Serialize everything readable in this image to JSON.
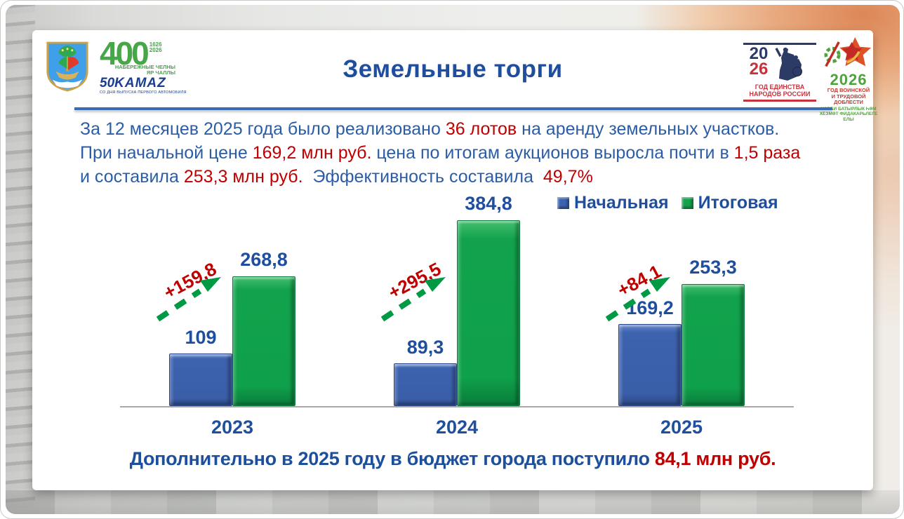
{
  "slide_title": "Земельные торги",
  "colors": {
    "accent_blue": "#1F4E9F",
    "text_blue": "#2B5DA7",
    "accent_red": "#C00000",
    "footer_blue": "#1C4F9C",
    "divider_blue": "#3A6BB5",
    "axis_gray": "#A8A8A8"
  },
  "logos": {
    "coat_of_arms": {
      "alt": "Герб города Набережные Челны"
    },
    "anniversary": {
      "number": "400",
      "years_top": "1626",
      "years_bottom": "2026",
      "city_line1": "НАБЕРЕЖНЫЕ ЧЕЛНЫ",
      "city_line2": "ЯР ЧАЛЛЫ",
      "kamaz_number": "50",
      "kamaz_brand": "KAMAZ",
      "kamaz_caption": "СО ДНЯ ВЫПУСКА ПЕРВОГО АВТОМОБИЛЯ"
    },
    "unity_2026": {
      "year_top": "20",
      "year_bottom": "26",
      "caption_line1": "ГОД ЕДИНСТВА",
      "caption_line2": "НАРОДОВ РОССИИ"
    },
    "valor_2026": {
      "year": "2026",
      "caption_line1": "ГОД ВОИНСКОЙ",
      "caption_line2": "И ТРУДОВОЙ ДОБЛЕСТИ",
      "caption_line3": "ХӘРБИ БАТЫРЛЫК ҺӘМ",
      "caption_line4": "ХЕЗМӘТ ФИДАКАРЬЛЕГЕ ЕЛЫ"
    }
  },
  "paragraph": {
    "lines": [
      [
        {
          "text": "За 12 месяцев 2025 года было реализовано ",
          "color": "blue"
        },
        {
          "text": "36 лотов",
          "color": "red"
        },
        {
          "text": " на аренду земельных участков.",
          "color": "blue"
        }
      ],
      [
        {
          "text": "При начальной цене ",
          "color": "blue"
        },
        {
          "text": "169,2 млн руб.",
          "color": "red"
        },
        {
          "text": " цена по итогам аукционов выросла почти в ",
          "color": "blue"
        },
        {
          "text": "1,5 раза",
          "color": "red"
        }
      ],
      [
        {
          "text": "и составила ",
          "color": "blue"
        },
        {
          "text": "253,3 млн руб.",
          "color": "red"
        },
        {
          "text": "  Эффективность составила  ",
          "color": "blue"
        },
        {
          "text": "49,7%",
          "color": "red"
        }
      ]
    ]
  },
  "chart_data": {
    "type": "bar",
    "title": "",
    "categories": [
      "2023",
      "2024",
      "2025"
    ],
    "series": [
      {
        "name": "Начальная",
        "slug": "initial",
        "color": "#3D62AE",
        "values": [
          109,
          89.3,
          169.2
        ],
        "labels": [
          "109",
          "89,3",
          "169,2"
        ]
      },
      {
        "name": "Итоговая",
        "slug": "final",
        "color": "#12A24D",
        "values": [
          268.8,
          384.8,
          253.3
        ],
        "labels": [
          "268,8",
          "384,8",
          "253,3"
        ]
      }
    ],
    "annotations": {
      "labels": [
        "+159,8",
        "+295,5",
        "+84,1"
      ],
      "color": "#C00000",
      "arrow_color": "#009A44"
    },
    "ylim": [
      0,
      400
    ],
    "legend_position": "top-right",
    "grid": false
  },
  "footer": {
    "segments": [
      {
        "text": "Дополнительно в 2025 году в бюджет города поступило ",
        "color": "blue"
      },
      {
        "text": "84,1 млн руб.",
        "color": "red"
      }
    ]
  }
}
